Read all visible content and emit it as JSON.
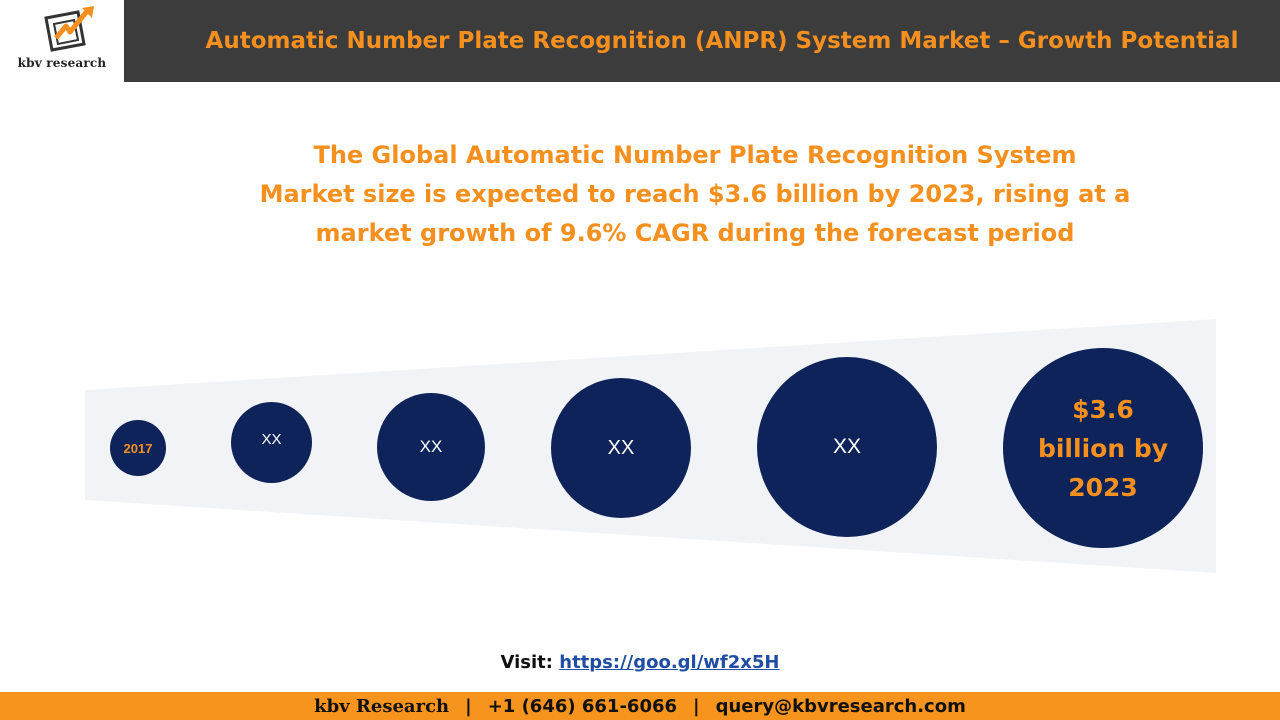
{
  "logo": {
    "text": "kbv research",
    "icon": "kbv-logo-icon"
  },
  "header": {
    "title": "Automatic Number Plate Recognition (ANPR) System Market – Growth Potential"
  },
  "headline": {
    "line1": "The Global Automatic Number Plate Recognition System",
    "line2": "Market size is expected to reach $3.6 billion by 2023, rising at a",
    "line3": "market growth of 9.6% CAGR during the forecast period"
  },
  "bubbles": [
    {
      "label": "2017"
    },
    {
      "label": "XX"
    },
    {
      "label": "XX"
    },
    {
      "label": "XX"
    },
    {
      "label": "XX"
    },
    {
      "line1": "$3.6",
      "line2": "billion by",
      "line3": "2023"
    }
  ],
  "visit": {
    "label": "Visit:",
    "link": "https://goo.gl/wf2x5H"
  },
  "footer": {
    "brand": "kbv Research",
    "separator": "|",
    "phone": "+1 (646) 661-6066",
    "email": "query@kbvresearch.com"
  },
  "colors": {
    "accent": "#f5901f",
    "header_bg": "#3c3c3c",
    "bubble": "#0d2359",
    "footer_bg": "#f7941d",
    "link": "#1f4ea3"
  }
}
